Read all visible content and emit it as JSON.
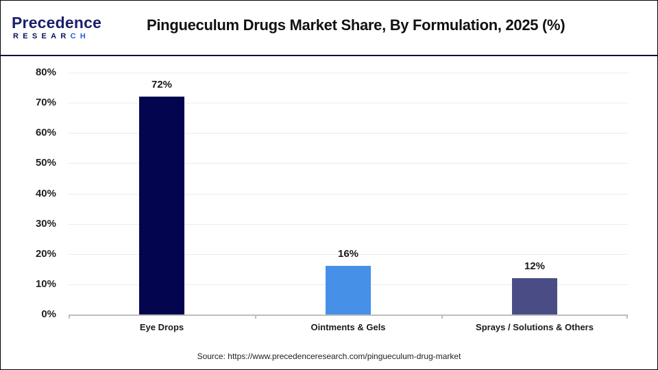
{
  "header": {
    "logo": {
      "top": "Precedence",
      "bottom_main": "RESEAR",
      "bottom_accent": "CH"
    },
    "title": "Pingueculum Drugs Market Share, By Formulation, 2025 (%)"
  },
  "colors": {
    "eye_drops": "#03064f",
    "ointments_gels": "#4690e8",
    "sprays_others": "#4a4d85",
    "divider": "#0a0a3c",
    "axis": "#bdbdbd",
    "grid": "#ececec"
  },
  "y_axis": {
    "ticks": [
      "80%",
      "70%",
      "60%",
      "50%",
      "40%",
      "30%",
      "20%",
      "10%",
      "0%"
    ]
  },
  "bars": [
    {
      "category": "Eye Drops",
      "value": 72,
      "label": "72%"
    },
    {
      "category": "Ointments & Gels",
      "value": 16,
      "label": "16%"
    },
    {
      "category": "Sprays / Solutions & Others",
      "value": 12,
      "label": "12%"
    }
  ],
  "footer": {
    "source": "Source: https://www.precedenceresearch.com/pingueculum-drug-market"
  },
  "chart_data": {
    "type": "bar",
    "title": "Pingueculum Drugs Market Share, By Formulation, 2025 (%)",
    "categories": [
      "Eye Drops",
      "Ointments & Gels",
      "Sprays / Solutions & Others"
    ],
    "values": [
      72,
      16,
      12
    ],
    "data_labels": [
      "72%",
      "16%",
      "12%"
    ],
    "colors": [
      "#03064f",
      "#4690e8",
      "#4a4d85"
    ],
    "xlabel": "",
    "ylabel": "",
    "ylim": [
      0,
      80
    ],
    "yticks": [
      0,
      10,
      20,
      30,
      40,
      50,
      60,
      70,
      80
    ],
    "ytick_format": "percent",
    "grid": true,
    "legend": "none",
    "source": "Source: https://www.precedenceresearch.com/pingueculum-drug-market"
  }
}
